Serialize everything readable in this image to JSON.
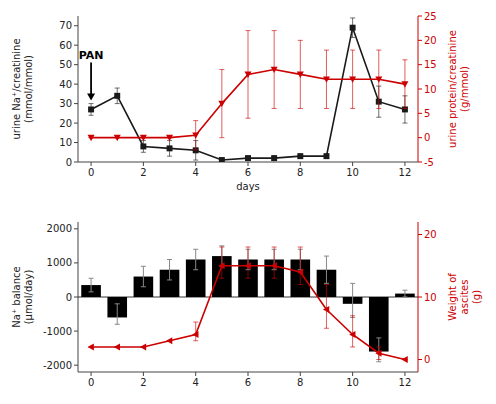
{
  "chart_data": [
    {
      "type": "line",
      "x": [
        0,
        1,
        2,
        3,
        4,
        5,
        6,
        7,
        8,
        9,
        10,
        11,
        12
      ],
      "xlim": [
        -0.5,
        12.5
      ],
      "xticks": [
        0,
        2,
        4,
        6,
        8,
        10,
        12
      ],
      "x_label": "days",
      "y_label": "urine Na⁺/creatinine\n(mmol/mmol)",
      "y2_label": "urine protein/creatinine\n(g/mmol)",
      "ylim": [
        0,
        75
      ],
      "yticks": [
        0,
        10,
        20,
        30,
        40,
        50,
        60,
        70
      ],
      "y2lim": [
        -5,
        25
      ],
      "y2ticks": [
        -5,
        0,
        5,
        10,
        15,
        20,
        25
      ],
      "grid": false,
      "annotations": [
        {
          "text": "PAN",
          "x": 0
        }
      ],
      "series": [
        {
          "color": "#1a1a1a",
          "marker": "square",
          "values": [
            27,
            34,
            8,
            7,
            6,
            1,
            2,
            2,
            3,
            3,
            69,
            31,
            27
          ],
          "errors": [
            3,
            4,
            3,
            4,
            5,
            1,
            1,
            1,
            1,
            1,
            5,
            8,
            7
          ]
        },
        {
          "axis": "y2",
          "color": "#cc0000",
          "marker": "triangle-down",
          "values": [
            0,
            0,
            0,
            0,
            0.5,
            7,
            13,
            14,
            13,
            12,
            12,
            12,
            11
          ],
          "errors": [
            0,
            0,
            0,
            0,
            3,
            7,
            9,
            8,
            7,
            6,
            6,
            6,
            5
          ]
        }
      ]
    },
    {
      "type": "bar",
      "x": [
        0,
        1,
        2,
        3,
        4,
        5,
        6,
        7,
        8,
        9,
        10,
        11,
        12
      ],
      "xlim": [
        -0.5,
        12.5
      ],
      "xticks": [
        0,
        2,
        4,
        6,
        8,
        10,
        12
      ],
      "y_label": "Na⁺ balance\n(μmol/day)",
      "y2_label": "Weight of\nascites\n(g)",
      "ylim": [
        -2200,
        2200
      ],
      "yticks": [
        -2000,
        -1000,
        0,
        1000,
        2000
      ],
      "y2lim": [
        -2,
        22
      ],
      "y2ticks": [
        0,
        10,
        20
      ],
      "grid": false,
      "series": [
        {
          "type": "bar",
          "color": "#000000",
          "values": [
            350,
            -600,
            600,
            800,
            1100,
            1200,
            1100,
            1100,
            1100,
            800,
            -200,
            -1600,
            100
          ],
          "error_low": [
            200,
            200,
            300,
            300,
            300,
            300,
            300,
            300,
            300,
            400,
            400,
            300,
            100
          ],
          "error_high": [
            200,
            400,
            300,
            300,
            300,
            300,
            300,
            300,
            300,
            400,
            600,
            400,
            100
          ]
        },
        {
          "type": "line",
          "axis": "y2",
          "color": "#cc0000",
          "marker": "triangle-left",
          "values": [
            2,
            2,
            2,
            3,
            4,
            15,
            15,
            15,
            14,
            8,
            4,
            1,
            0
          ],
          "error_low": [
            0,
            0,
            0,
            0,
            1,
            2,
            2,
            2,
            2,
            3,
            2,
            1,
            0
          ],
          "error_high": [
            0,
            0,
            0,
            0,
            2,
            3,
            3,
            3,
            4,
            4,
            3,
            1,
            0
          ]
        }
      ]
    }
  ]
}
